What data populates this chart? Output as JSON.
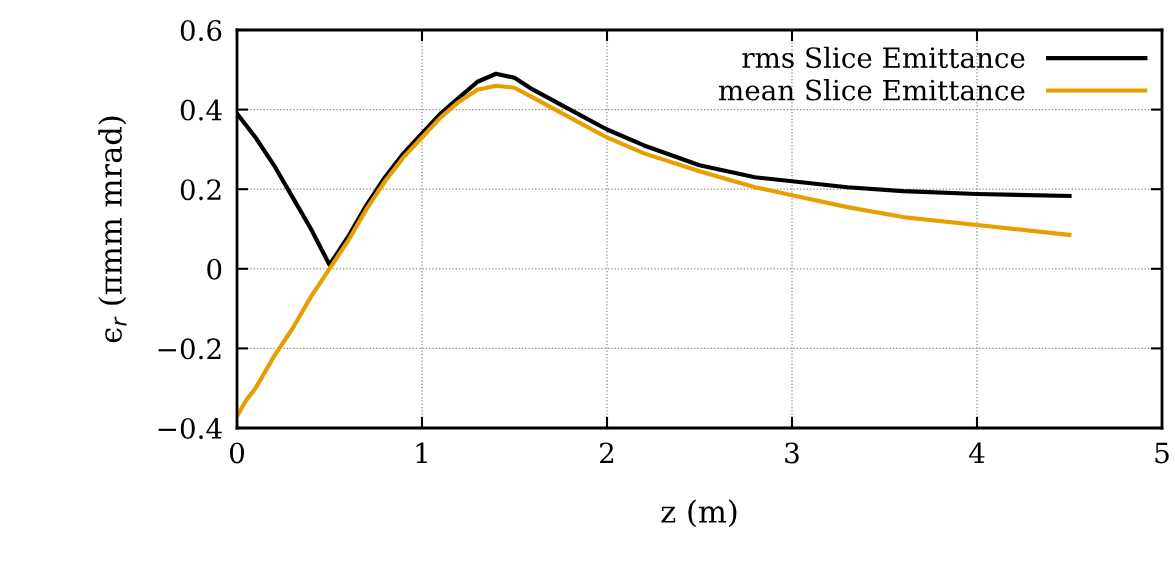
{
  "chart_data": {
    "type": "line",
    "xlabel": "z (m)",
    "ylabel": "ϵ$_{r}$ (πmm mrad)",
    "xlim": [
      0,
      5
    ],
    "xticks": [
      0,
      1,
      2,
      3,
      4,
      5
    ],
    "ylim": [
      -0.4,
      0.6
    ],
    "yticks": [
      {
        "value": -0.4,
        "label": "−0.4"
      },
      {
        "value": -0.2,
        "label": "−0.2"
      },
      0,
      0.2,
      0.4,
      0.6
    ],
    "grid": true,
    "legend": "top right",
    "line_style": "solid",
    "marker": "none",
    "series": [
      {
        "name": "rms Slice Emittance",
        "color": "#000000",
        "x": [
          0,
          0.05,
          0.1,
          0.2,
          0.3,
          0.4,
          0.5,
          0.6,
          0.7,
          0.8,
          0.9,
          1.0,
          1.1,
          1.2,
          1.3,
          1.4,
          1.5,
          1.6,
          1.8,
          2.0,
          2.2,
          2.5,
          2.8,
          3.0,
          3.3,
          3.6,
          4.0,
          4.5
        ],
        "values": [
          0.39,
          0.36,
          0.33,
          0.26,
          0.18,
          0.1,
          0.01,
          0.08,
          0.16,
          0.23,
          0.29,
          0.34,
          0.39,
          0.43,
          0.47,
          0.49,
          0.48,
          0.45,
          0.4,
          0.35,
          0.31,
          0.26,
          0.23,
          0.22,
          0.205,
          0.195,
          0.188,
          0.183
        ]
      },
      {
        "name": "mean Slice Emittance",
        "color": "#e69f00",
        "x": [
          0,
          0.05,
          0.1,
          0.2,
          0.3,
          0.4,
          0.5,
          0.6,
          0.7,
          0.8,
          0.9,
          1.0,
          1.1,
          1.2,
          1.3,
          1.4,
          1.5,
          1.6,
          1.8,
          2.0,
          2.2,
          2.5,
          2.8,
          3.0,
          3.3,
          3.6,
          4.0,
          4.5
        ],
        "values": [
          -0.37,
          -0.33,
          -0.3,
          -0.22,
          -0.15,
          -0.07,
          0.0,
          0.07,
          0.15,
          0.22,
          0.28,
          0.33,
          0.38,
          0.42,
          0.45,
          0.46,
          0.455,
          0.43,
          0.38,
          0.33,
          0.29,
          0.245,
          0.205,
          0.185,
          0.155,
          0.13,
          0.11,
          0.085
        ]
      }
    ]
  }
}
